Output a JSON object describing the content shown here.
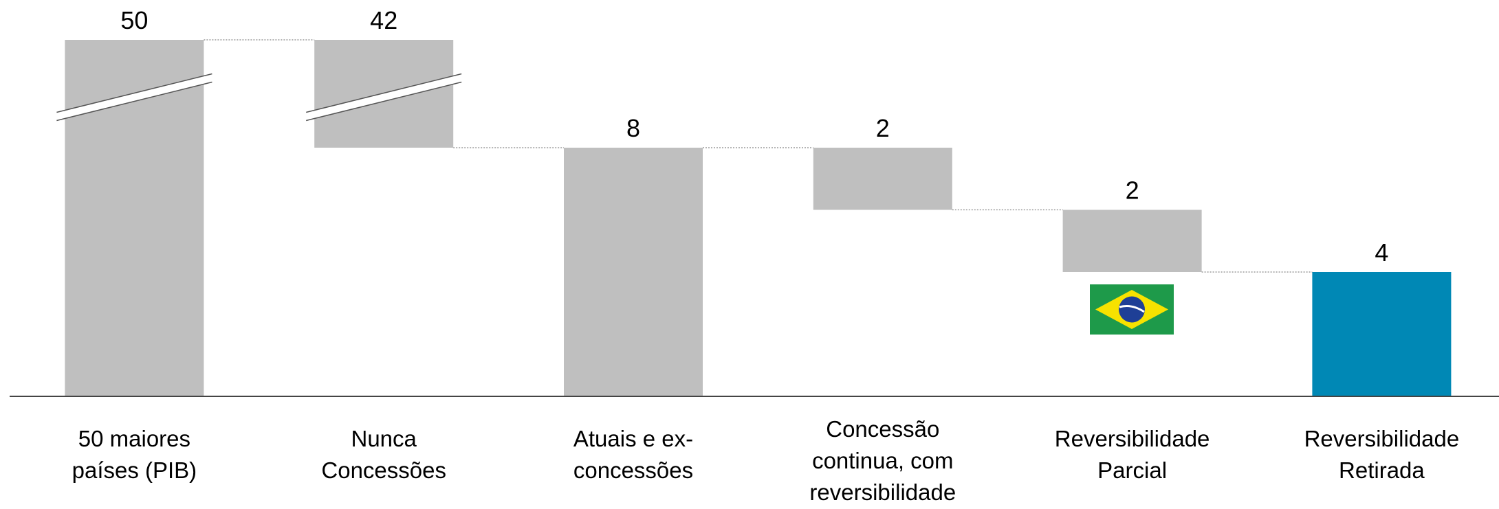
{
  "chart_data": {
    "type": "waterfall",
    "categories": [
      [
        "50 maiores",
        "países (PIB)"
      ],
      [
        "Nunca",
        "Concessões"
      ],
      [
        "Atuais e ex-",
        "concessões"
      ],
      [
        "Concessão",
        "continua, com",
        "reversibilidade"
      ],
      [
        "Reversibilidade",
        "Parcial"
      ],
      [
        "Reversibilidade",
        "Retirada"
      ]
    ],
    "values": [
      50,
      42,
      8,
      2,
      2,
      4
    ],
    "measure": [
      "total",
      "relative",
      "total",
      "relative",
      "relative",
      "total"
    ],
    "colors": [
      "#bfbfbf",
      "#bfbfbf",
      "#bfbfbf",
      "#bfbfbf",
      "#bfbfbf",
      "#0088b5"
    ],
    "axis_break": true
  }
}
